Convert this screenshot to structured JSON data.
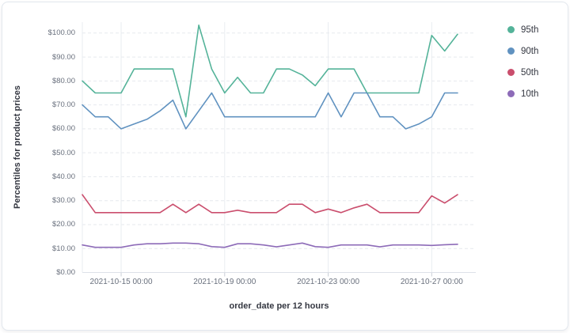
{
  "chart_data": {
    "type": "line",
    "xlabel": "order_date per 12 hours",
    "ylabel": "Percentiles for product prices",
    "x_start": "2021-10-13 12:00",
    "x_step_hours": 12,
    "n_points": 30,
    "x_tick_labels": [
      "2021-10-15 00:00",
      "2021-10-19 00:00",
      "2021-10-23 00:00",
      "2021-10-27 00:00"
    ],
    "x_tick_indices": [
      3,
      11,
      19,
      27
    ],
    "y_tick_values": [
      0,
      10,
      20,
      30,
      40,
      50,
      60,
      70,
      80,
      90,
      100
    ],
    "y_tick_labels": [
      "$0.00",
      "$10.00",
      "$20.00",
      "$30.00",
      "$40.00",
      "$50.00",
      "$60.00",
      "$70.00",
      "$80.00",
      "$90.00",
      "$100.00"
    ],
    "ylim": [
      0,
      104.5
    ],
    "grid": true,
    "legend_position": "right",
    "series": [
      {
        "name": "95th",
        "color": "#54b399",
        "values": [
          80,
          75,
          75,
          75,
          85,
          85,
          85,
          85,
          65,
          103.3,
          85,
          75,
          81.5,
          75,
          75,
          85,
          85,
          82.5,
          78,
          85,
          85,
          85,
          75,
          75,
          75,
          75,
          75,
          99,
          92.5,
          99.5
        ]
      },
      {
        "name": "90th",
        "color": "#6092c0",
        "values": [
          70,
          65,
          65,
          60,
          62,
          64,
          67.5,
          72,
          60,
          67.5,
          75,
          65,
          65,
          65,
          65,
          65,
          65,
          65,
          65,
          75,
          65,
          75,
          75,
          65,
          65,
          60,
          62,
          65,
          75,
          75
        ]
      },
      {
        "name": "50th",
        "color": "#ca4e6d",
        "values": [
          32.5,
          25,
          25,
          25,
          25,
          25,
          25,
          28.5,
          25,
          28.5,
          25,
          25,
          26,
          25,
          25,
          25,
          28.5,
          28.5,
          25,
          26.5,
          25,
          27,
          28.5,
          25,
          25,
          25,
          25,
          32,
          29,
          32.5
        ]
      },
      {
        "name": "10th",
        "color": "#8d6bb8",
        "values": [
          11.5,
          10.5,
          10.5,
          10.5,
          11.5,
          12,
          12,
          12.3,
          12.3,
          12,
          10.8,
          10.5,
          12,
          12,
          11.5,
          10.7,
          11.5,
          12.3,
          10.8,
          10.5,
          11.5,
          11.5,
          11.5,
          10.7,
          11.5,
          11.5,
          11.5,
          11.3,
          11.6,
          11.8
        ]
      }
    ]
  },
  "colors": {
    "v_grid": "#e9ecf1",
    "h_grid": "#e6e9ee",
    "axis_line": "#dde1e8",
    "tick_mark": "#c9ced6"
  }
}
